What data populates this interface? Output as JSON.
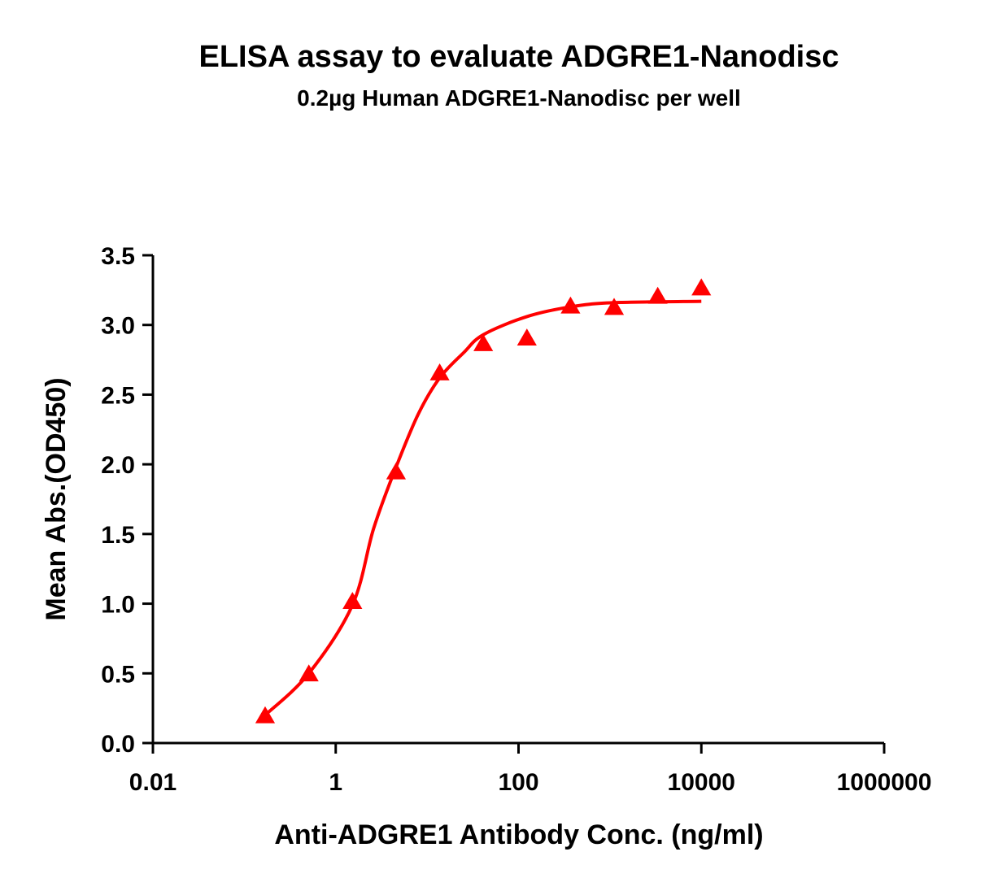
{
  "chart_data": {
    "type": "scatter",
    "title": "ELISA assay to evaluate ADGRE1-Nanodisc",
    "subtitle": "0.2µg Human ADGRE1-Nanodisc per well",
    "x_label": "Anti-ADGRE1 Antibody Conc. (ng/ml)",
    "y_label": "Mean Abs.(OD450)",
    "xscale": "log",
    "xlim": [
      0.01,
      1000000
    ],
    "xticks": [
      0.01,
      1,
      100,
      10000,
      1000000
    ],
    "ylim": [
      0,
      3.5
    ],
    "yticks": [
      {
        "value": 0,
        "label": "0.0"
      },
      {
        "value": 0.5,
        "label": "0.5"
      },
      {
        "value": 1,
        "label": "1.0"
      },
      {
        "value": 1.5,
        "label": "1.5"
      },
      {
        "value": 2,
        "label": "2.0"
      },
      {
        "value": 2.5,
        "label": "2.5"
      },
      {
        "value": 3,
        "label": "3.0"
      },
      {
        "value": 3.5,
        "label": "3.5"
      }
    ],
    "series": [
      {
        "style": "markers",
        "marker": "triangle",
        "color": "#ff0000",
        "x": [
          0.169,
          0.508,
          1.524,
          4.572,
          13.72,
          41.15,
          123.5,
          370.4,
          1111,
          3333,
          10000
        ],
        "values": [
          0.2,
          0.5,
          1.02,
          1.95,
          2.66,
          2.87,
          2.91,
          3.14,
          3.13,
          3.21,
          3.27
        ]
      },
      {
        "style": "line",
        "color": "#ff0000",
        "x": [
          0.169,
          0.508,
          1.524,
          2.6,
          4.572,
          8,
          13.72,
          25,
          41.15,
          123.5,
          370.4,
          1111,
          10000
        ],
        "values": [
          0.2,
          0.5,
          0.99,
          1.54,
          1.98,
          2.36,
          2.62,
          2.8,
          2.93,
          3.06,
          3.13,
          3.16,
          3.17
        ]
      }
    ]
  }
}
